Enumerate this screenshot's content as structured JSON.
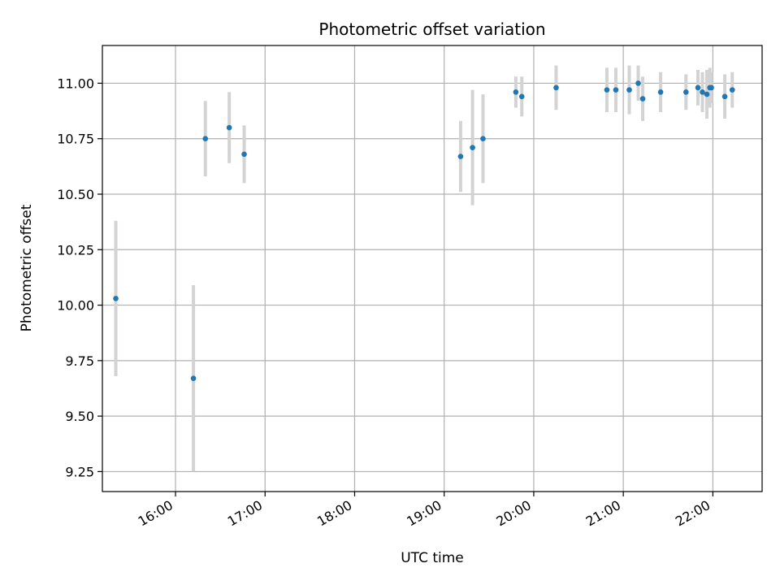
{
  "chart_data": {
    "type": "scatter",
    "title": "Photometric offset variation",
    "xlabel": "UTC time",
    "ylabel": "Photometric offset",
    "x_axis": "time (UTC, HH:MM)",
    "xlim": [
      "15:11",
      "22:33"
    ],
    "ylim": [
      9.16,
      11.17
    ],
    "xticks": [
      "16:00",
      "17:00",
      "18:00",
      "19:00",
      "20:00",
      "21:00",
      "22:00"
    ],
    "yticks": [
      "9.25",
      "9.50",
      "9.75",
      "10.00",
      "10.25",
      "10.50",
      "10.75",
      "11.00"
    ],
    "grid": true,
    "marker_color": "#1f77b4",
    "errorbar_color": "#d3d3d3",
    "series": [
      {
        "points": [
          {
            "x": "15:20",
            "y": 10.03,
            "err": 0.35
          },
          {
            "x": "16:12",
            "y": 9.67,
            "err": 0.42
          },
          {
            "x": "16:20",
            "y": 10.75,
            "err": 0.17
          },
          {
            "x": "16:36",
            "y": 10.8,
            "err": 0.16
          },
          {
            "x": "16:46",
            "y": 10.68,
            "err": 0.13
          },
          {
            "x": "19:11",
            "y": 10.67,
            "err": 0.16
          },
          {
            "x": "19:19",
            "y": 10.71,
            "err": 0.26
          },
          {
            "x": "19:26",
            "y": 10.75,
            "err": 0.2
          },
          {
            "x": "19:48",
            "y": 10.96,
            "err": 0.07
          },
          {
            "x": "19:52",
            "y": 10.94,
            "err": 0.09
          },
          {
            "x": "20:15",
            "y": 10.98,
            "err": 0.1
          },
          {
            "x": "20:49",
            "y": 10.97,
            "err": 0.1
          },
          {
            "x": "20:55",
            "y": 10.97,
            "err": 0.1
          },
          {
            "x": "21:04",
            "y": 10.97,
            "err": 0.11
          },
          {
            "x": "21:10",
            "y": 11.0,
            "err": 0.08
          },
          {
            "x": "21:13",
            "y": 10.93,
            "err": 0.1
          },
          {
            "x": "21:25",
            "y": 10.96,
            "err": 0.09
          },
          {
            "x": "21:42",
            "y": 10.96,
            "err": 0.08
          },
          {
            "x": "21:50",
            "y": 10.98,
            "err": 0.08
          },
          {
            "x": "21:53",
            "y": 10.96,
            "err": 0.09
          },
          {
            "x": "21:56",
            "y": 10.95,
            "err": 0.11
          },
          {
            "x": "21:58",
            "y": 10.98,
            "err": 0.09
          },
          {
            "x": "21:59",
            "y": 10.98,
            "err": 0.07
          },
          {
            "x": "22:08",
            "y": 10.94,
            "err": 0.1
          },
          {
            "x": "22:13",
            "y": 10.97,
            "err": 0.08
          }
        ]
      }
    ]
  }
}
